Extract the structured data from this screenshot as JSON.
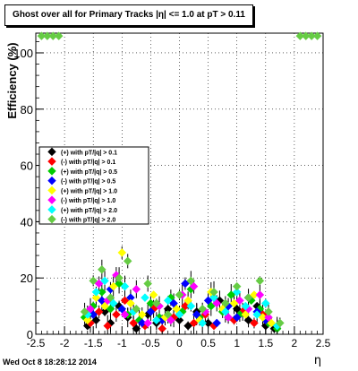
{
  "chart_data": {
    "type": "scatter",
    "title": "Ghost over all for Primary Tracks |η| <= 1.0 at pT > 0.11",
    "xlabel": "η",
    "ylabel": "Efficiency (%)",
    "xlim": [
      -2.5,
      2.5
    ],
    "ylim": [
      0,
      107
    ],
    "xticks": [
      "-2.5",
      "-2",
      "-1.5",
      "-1",
      "-0.5",
      "0",
      "0.5",
      "1",
      "1.5",
      "2",
      "2.5"
    ],
    "yticks": [
      "0",
      "20",
      "40",
      "60",
      "80",
      "100"
    ],
    "grid": true,
    "legend_position": "center-left",
    "series": [
      {
        "name": "(+) with pT/|q| > 0.1",
        "color": "#000000",
        "points": [
          [
            -1.6,
            3
          ],
          [
            -1.45,
            5
          ],
          [
            -1.3,
            8
          ],
          [
            -1.2,
            4
          ],
          [
            -1.05,
            10
          ],
          [
            -0.9,
            6
          ],
          [
            -0.75,
            2
          ],
          [
            -0.55,
            7
          ],
          [
            -0.4,
            4
          ],
          [
            -0.2,
            9
          ],
          [
            0,
            5
          ],
          [
            0.15,
            3
          ],
          [
            0.3,
            8
          ],
          [
            0.5,
            4
          ],
          [
            0.7,
            12
          ],
          [
            0.85,
            6
          ],
          [
            1.0,
            9
          ],
          [
            1.2,
            5
          ],
          [
            1.35,
            10
          ],
          [
            1.5,
            3
          ],
          [
            1.65,
            2
          ]
        ]
      },
      {
        "name": "(-) with pT/|q| > 0.1",
        "color": "#ff0000",
        "points": [
          [
            -1.55,
            4
          ],
          [
            -1.4,
            8
          ],
          [
            -1.25,
            3
          ],
          [
            -1.1,
            7
          ],
          [
            -0.95,
            12
          ],
          [
            -0.8,
            4
          ],
          [
            -0.6,
            3
          ],
          [
            -0.45,
            9
          ],
          [
            -0.3,
            2
          ],
          [
            -0.1,
            6
          ],
          [
            0.1,
            10
          ],
          [
            0.25,
            4
          ],
          [
            0.45,
            7
          ],
          [
            0.6,
            3
          ],
          [
            0.8,
            9
          ],
          [
            0.95,
            5
          ],
          [
            1.1,
            8
          ],
          [
            1.3,
            4
          ],
          [
            1.45,
            7
          ]
        ]
      },
      {
        "name": "(+) with pT/|q| > 0.5",
        "color": "#00cc00",
        "points": [
          [
            -1.65,
            6
          ],
          [
            -1.5,
            10
          ],
          [
            -1.35,
            15
          ],
          [
            -1.2,
            9
          ],
          [
            -1.05,
            18
          ],
          [
            -0.9,
            7
          ],
          [
            -0.7,
            5
          ],
          [
            -0.5,
            11
          ],
          [
            -0.35,
            6
          ],
          [
            -0.15,
            13
          ],
          [
            0.05,
            8
          ],
          [
            0.2,
            16
          ],
          [
            0.35,
            6
          ],
          [
            0.55,
            10
          ],
          [
            0.75,
            8
          ],
          [
            0.9,
            14
          ],
          [
            1.05,
            7
          ],
          [
            1.25,
            12
          ],
          [
            1.4,
            9
          ],
          [
            1.55,
            4
          ],
          [
            1.7,
            2
          ]
        ]
      },
      {
        "name": "(-) with pT/|q| > 0.5",
        "color": "#0000ff",
        "points": [
          [
            -1.5,
            7
          ],
          [
            -1.35,
            12
          ],
          [
            -1.2,
            16
          ],
          [
            -1.0,
            9
          ],
          [
            -0.85,
            13
          ],
          [
            -0.65,
            4
          ],
          [
            -0.5,
            8
          ],
          [
            -0.3,
            5
          ],
          [
            -0.1,
            11
          ],
          [
            0.1,
            18
          ],
          [
            0.3,
            7
          ],
          [
            0.5,
            12
          ],
          [
            0.65,
            4
          ],
          [
            0.85,
            10
          ],
          [
            1.0,
            6
          ],
          [
            1.2,
            13
          ],
          [
            1.35,
            8
          ],
          [
            1.5,
            5
          ]
        ]
      },
      {
        "name": "(+) with pT/|q| > 1.0",
        "color": "#ffff00",
        "points": [
          [
            -1.6,
            5
          ],
          [
            -1.45,
            13
          ],
          [
            -1.3,
            10
          ],
          [
            -1.15,
            17
          ],
          [
            -1.0,
            29
          ],
          [
            -0.85,
            11
          ],
          [
            -0.65,
            7
          ],
          [
            -0.45,
            14
          ],
          [
            -0.25,
            6
          ],
          [
            -0.05,
            9
          ],
          [
            0.15,
            12
          ],
          [
            0.35,
            5
          ],
          [
            0.55,
            15
          ],
          [
            0.75,
            9
          ],
          [
            0.95,
            11
          ],
          [
            1.15,
            7
          ],
          [
            1.3,
            14
          ],
          [
            1.45,
            6
          ],
          [
            1.6,
            4
          ]
        ]
      },
      {
        "name": "(-) with pT/|q| > 1.0",
        "color": "#ff00ff",
        "points": [
          [
            -1.55,
            9
          ],
          [
            -1.4,
            18
          ],
          [
            -1.25,
            12
          ],
          [
            -1.1,
            21
          ],
          [
            -0.95,
            7
          ],
          [
            -0.75,
            16
          ],
          [
            -0.55,
            4
          ],
          [
            -0.35,
            10
          ],
          [
            -0.15,
            5
          ],
          [
            0.05,
            14
          ],
          [
            0.25,
            17
          ],
          [
            0.45,
            8
          ],
          [
            0.65,
            11
          ],
          [
            0.85,
            6
          ],
          [
            1.05,
            12
          ],
          [
            1.2,
            9
          ],
          [
            1.4,
            14
          ],
          [
            1.55,
            6
          ]
        ]
      },
      {
        "name": "(+) with pT/|q| > 2.0",
        "color": "#00ffff",
        "points": [
          [
            -1.6,
            7
          ],
          [
            -1.45,
            15
          ],
          [
            -1.3,
            19
          ],
          [
            -1.15,
            11
          ],
          [
            -0.95,
            17
          ],
          [
            -0.8,
            8
          ],
          [
            -0.6,
            13
          ],
          [
            -0.4,
            5
          ],
          [
            -0.2,
            12
          ],
          [
            0.0,
            7
          ],
          [
            0.2,
            10
          ],
          [
            0.4,
            4
          ],
          [
            0.6,
            13
          ],
          [
            0.8,
            8
          ],
          [
            1.0,
            15
          ],
          [
            1.15,
            10
          ],
          [
            1.35,
            7
          ],
          [
            1.5,
            11
          ],
          [
            1.7,
            3
          ]
        ]
      },
      {
        "name": "(-) with pT/|q| > 2.0",
        "color": "#66cc44",
        "points": [
          [
            -2.4,
            106
          ],
          [
            -2.3,
            106
          ],
          [
            -2.2,
            106
          ],
          [
            -2.1,
            106
          ],
          [
            -1.65,
            8
          ],
          [
            -1.5,
            19
          ],
          [
            -1.35,
            23
          ],
          [
            -1.2,
            13
          ],
          [
            -1.05,
            20
          ],
          [
            -0.9,
            26
          ],
          [
            -0.75,
            9
          ],
          [
            -0.55,
            18
          ],
          [
            -0.4,
            11
          ],
          [
            -0.2,
            7
          ],
          [
            0.0,
            14
          ],
          [
            0.2,
            19
          ],
          [
            0.4,
            9
          ],
          [
            0.6,
            15
          ],
          [
            0.8,
            11
          ],
          [
            1.0,
            17
          ],
          [
            1.2,
            13
          ],
          [
            1.4,
            19
          ],
          [
            1.55,
            8
          ],
          [
            1.75,
            4
          ],
          [
            2.1,
            106
          ],
          [
            2.2,
            106
          ],
          [
            2.3,
            106
          ],
          [
            2.4,
            106
          ]
        ]
      }
    ]
  },
  "footer": {
    "timestamp": "Wed Oct  8 18:28:12 2014"
  }
}
